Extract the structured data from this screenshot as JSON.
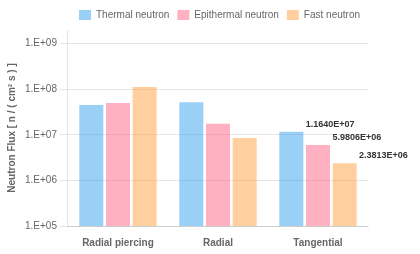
{
  "chart_data": {
    "type": "bar",
    "categories": [
      "Radial piercing",
      "Radial",
      "Tangential"
    ],
    "series": [
      {
        "name": "Thermal neutron",
        "values": [
          45000000,
          52000000,
          11640000
        ]
      },
      {
        "name": "Epithermal neutron",
        "values": [
          50000000,
          17500000,
          5980600
        ]
      },
      {
        "name": "Fast neutron",
        "values": [
          112000000,
          8500000,
          2381300
        ]
      }
    ],
    "ylabel": "Neutron Flux [ n / ( cm² s ) ]",
    "log": "y",
    "ylim": [
      100000,
      2000000000
    ],
    "yticks": [
      {
        "value": 100000,
        "label": "1.E+05"
      },
      {
        "value": 1000000,
        "label": "1.E+06"
      },
      {
        "value": 10000000,
        "label": "1.E+07"
      },
      {
        "value": 100000000,
        "label": "1.E+08"
      },
      {
        "value": 1000000000,
        "label": "1.E+09"
      }
    ],
    "grid": true,
    "legend": "upper right",
    "annotations": [
      {
        "category": "Tangential",
        "series": "Thermal neutron",
        "text": "1.1640E+07"
      },
      {
        "category": "Tangential",
        "series": "Epithermal neutron",
        "text": "5.9806E+06"
      },
      {
        "category": "Tangential",
        "series": "Fast neutron",
        "text": "2.3813E+06"
      }
    ]
  }
}
